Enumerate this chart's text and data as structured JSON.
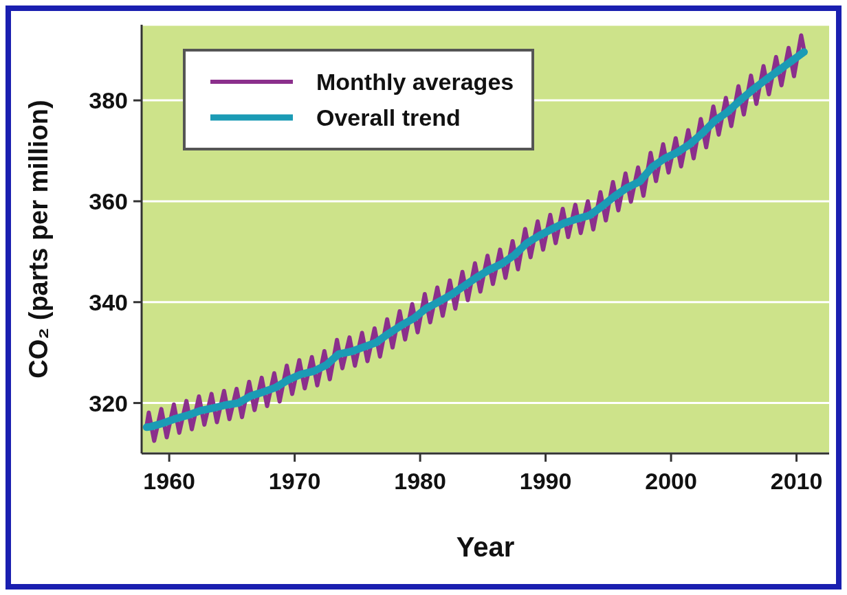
{
  "chart_data": {
    "type": "line",
    "xlabel": "Year",
    "ylabel": "CO₂ (parts per million)",
    "xlim": [
      1957.8,
      2012.6
    ],
    "ylim": [
      310,
      395
    ],
    "xticks": [
      1960,
      1970,
      1980,
      1990,
      2000,
      2010
    ],
    "yticks": [
      320,
      340,
      360,
      380
    ],
    "grid": "y",
    "legend": "top left",
    "marker": "none",
    "line_style": "solid",
    "series": [
      {
        "name": "Monthly averages",
        "color": "#8b2f8c",
        "x": [
          1958.2,
          1958.37,
          1958.8,
          1959.37,
          1959.8,
          1960.37,
          1960.8,
          1961.37,
          1961.8,
          1962.37,
          1962.8,
          1963.37,
          1963.8,
          1964.37,
          1964.8,
          1965.37,
          1965.8,
          1966.37,
          1966.8,
          1967.37,
          1967.8,
          1968.37,
          1968.8,
          1969.37,
          1969.8,
          1970.37,
          1970.8,
          1971.37,
          1971.8,
          1972.37,
          1972.8,
          1973.37,
          1973.8,
          1974.37,
          1974.8,
          1975.37,
          1975.8,
          1976.37,
          1976.8,
          1977.37,
          1977.8,
          1978.37,
          1978.8,
          1979.37,
          1979.8,
          1980.37,
          1980.8,
          1981.37,
          1981.8,
          1982.37,
          1982.8,
          1983.37,
          1983.8,
          1984.37,
          1984.8,
          1985.37,
          1985.8,
          1986.37,
          1986.8,
          1987.37,
          1987.8,
          1988.37,
          1988.8,
          1989.37,
          1989.8,
          1990.37,
          1990.8,
          1991.37,
          1991.8,
          1992.37,
          1992.8,
          1993.37,
          1993.8,
          1994.37,
          1994.8,
          1995.37,
          1995.8,
          1996.37,
          1996.8,
          1997.37,
          1997.8,
          1998.37,
          1998.8,
          1999.37,
          1999.8,
          2000.37,
          2000.8,
          2001.37,
          2001.8,
          2002.37,
          2002.8,
          2003.37,
          2003.8,
          2004.37,
          2004.8,
          2005.37,
          2005.8,
          2006.37,
          2006.8,
          2007.37,
          2007.8,
          2008.37,
          2008.8,
          2009.37,
          2009.8,
          2010.37,
          2010.6
        ],
        "values": [
          315.5,
          318.1,
          312.5,
          318.8,
          313.2,
          319.7,
          314.1,
          320.4,
          314.8,
          321.3,
          315.7,
          321.8,
          316.2,
          322.4,
          316.8,
          322.8,
          317.2,
          324.2,
          318.6,
          325.0,
          319.4,
          325.9,
          320.3,
          327.4,
          321.8,
          328.5,
          322.9,
          329.1,
          323.5,
          330.3,
          324.7,
          332.5,
          326.9,
          333.0,
          327.4,
          333.9,
          328.3,
          334.8,
          329.2,
          336.6,
          331.0,
          338.2,
          332.6,
          339.6,
          334.0,
          341.6,
          336.0,
          342.9,
          337.3,
          344.3,
          338.7,
          346.0,
          340.4,
          347.7,
          342.1,
          349.2,
          343.6,
          350.4,
          344.8,
          352.1,
          346.5,
          354.5,
          348.9,
          356.0,
          350.4,
          357.3,
          351.7,
          358.5,
          352.9,
          359.3,
          353.7,
          360.0,
          354.4,
          361.8,
          356.2,
          363.8,
          358.2,
          365.5,
          359.9,
          366.7,
          361.1,
          369.6,
          364.0,
          371.3,
          365.7,
          372.5,
          366.9,
          374.1,
          368.5,
          376.3,
          370.7,
          378.8,
          373.2,
          380.5,
          374.9,
          382.8,
          377.2,
          384.9,
          379.3,
          386.8,
          381.2,
          388.6,
          383.0,
          390.4,
          384.8,
          392.9,
          390.0
        ]
      },
      {
        "name": "Overall trend",
        "color": "#1b9bb5",
        "x": [
          1958.2,
          1958.5,
          1959.5,
          1960.5,
          1961.5,
          1962.5,
          1963.5,
          1964.5,
          1965.5,
          1966.5,
          1967.5,
          1968.5,
          1969.5,
          1970.5,
          1971.5,
          1972.5,
          1973.5,
          1974.5,
          1975.5,
          1976.5,
          1977.5,
          1978.5,
          1979.5,
          1980.5,
          1981.5,
          1982.5,
          1983.5,
          1984.5,
          1985.5,
          1986.5,
          1987.5,
          1988.5,
          1989.5,
          1990.5,
          1991.5,
          1992.5,
          1993.5,
          1994.5,
          1995.5,
          1996.5,
          1997.5,
          1998.5,
          1999.5,
          2000.5,
          2001.5,
          2002.5,
          2003.5,
          2004.5,
          2005.5,
          2006.5,
          2007.5,
          2008.5,
          2009.5,
          2010.6
        ],
        "values": [
          315.2,
          315.3,
          316.0,
          316.9,
          317.6,
          318.5,
          319.0,
          319.6,
          320.0,
          321.4,
          322.2,
          323.1,
          324.6,
          325.7,
          326.3,
          327.5,
          329.7,
          330.2,
          331.1,
          332.0,
          333.8,
          335.4,
          336.8,
          338.8,
          340.1,
          341.5,
          343.2,
          344.9,
          346.4,
          347.6,
          349.3,
          351.7,
          353.2,
          354.5,
          355.7,
          356.5,
          357.2,
          359.0,
          361.0,
          362.7,
          363.9,
          366.8,
          368.5,
          369.7,
          371.3,
          373.5,
          376.0,
          377.7,
          380.0,
          382.1,
          384.0,
          385.8,
          387.6,
          389.6
        ]
      }
    ]
  }
}
